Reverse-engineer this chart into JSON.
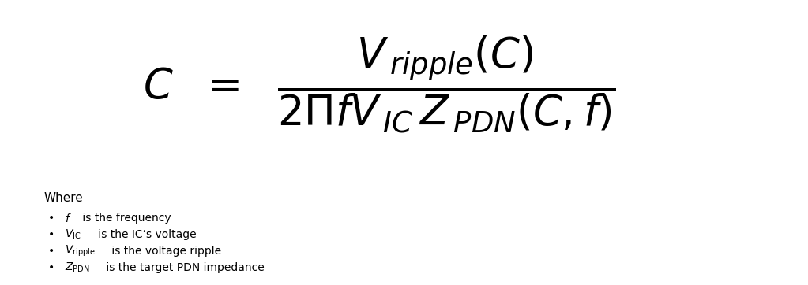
{
  "background_color": "#ffffff",
  "fig_width": 10.23,
  "fig_height": 3.62,
  "dpi": 100,
  "where_label": "Where",
  "bullet_items": [
    [
      " $f$",
      " is the frequency"
    ],
    [
      " $V_{\\mathrm{IC}}$",
      " is the IC’s voltage"
    ],
    [
      " $V_{\\mathrm{ripple}}$",
      " is the voltage ripple"
    ],
    [
      " $Z_{\\mathrm{PDN}}$",
      " is the target PDN impedance"
    ]
  ]
}
